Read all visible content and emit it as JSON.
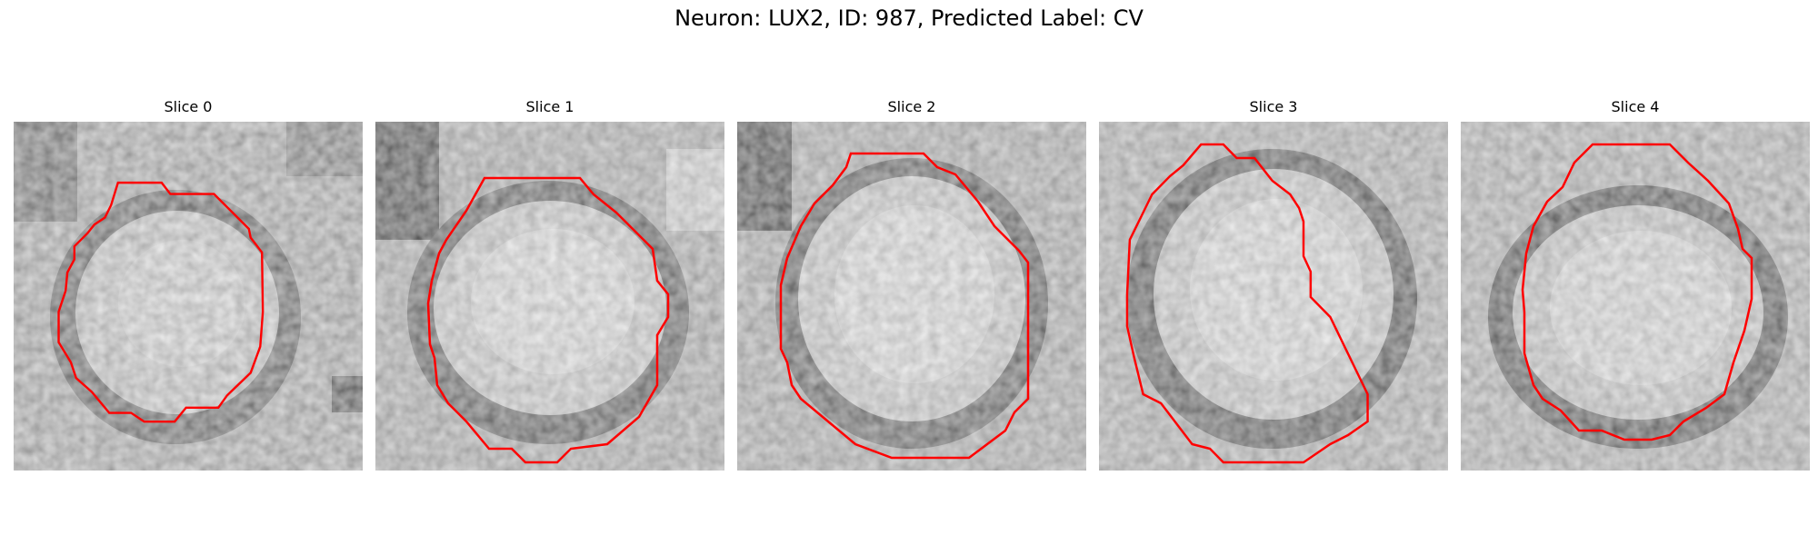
{
  "figure": {
    "title": "Neuron: LUX2, ID: 987, Predicted Label: CV"
  },
  "slices": [
    {
      "title": "Slice 0"
    },
    {
      "title": "Slice 1"
    },
    {
      "title": "Slice 2"
    },
    {
      "title": "Slice 3"
    },
    {
      "title": "Slice 4"
    }
  ],
  "colors": {
    "contour": "#ff0000",
    "background": "#ffffff"
  }
}
